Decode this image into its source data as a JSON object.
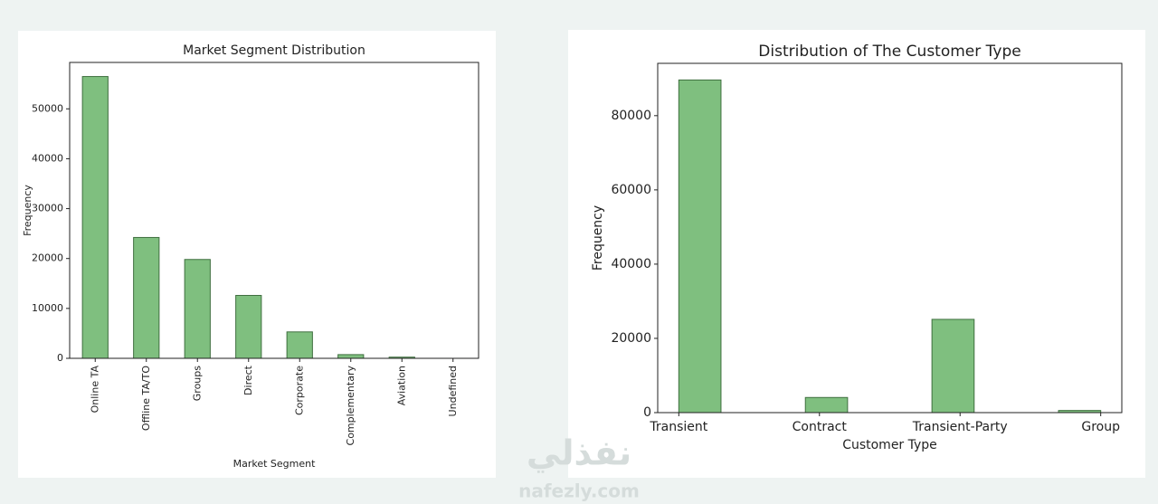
{
  "chart_data": [
    {
      "type": "bar",
      "title": "Market Segment Distribution",
      "xlabel": "Market Segment",
      "ylabel": "Frequency",
      "categories": [
        "Online TA",
        "Offline TA/TO",
        "Groups",
        "Direct",
        "Corporate",
        "Complementary",
        "Aviation",
        "Undefined"
      ],
      "values": [
        56477,
        24219,
        19811,
        12606,
        5295,
        743,
        237,
        2
      ],
      "color": "#7fbf7f",
      "edgecolor": "#3f6f3f",
      "ylim": [
        0,
        59300
      ],
      "yticks": [
        0,
        10000,
        20000,
        30000,
        40000,
        50000
      ]
    },
    {
      "type": "histogram",
      "title": "Distribution of The Customer Type",
      "xlabel": "Customer Type",
      "ylabel": "Frequency",
      "bins": [
        0,
        0.3,
        0.6,
        0.9,
        1.2,
        1.5,
        1.8,
        2.1,
        2.4,
        2.7,
        3
      ],
      "values": [
        89613,
        0,
        0,
        4076,
        0,
        0,
        25124,
        0,
        0,
        577
      ],
      "color": "#7fbf7f",
      "edgecolor": "#3f6f3f",
      "xlim": [
        -0.15,
        3.15
      ],
      "xticks": [
        {
          "value": 0,
          "label": "Transient"
        },
        {
          "value": 1,
          "label": "Contract"
        },
        {
          "value": 2,
          "label": "Transient-Party"
        },
        {
          "value": 3,
          "label": "Group"
        }
      ],
      "ylim": [
        0,
        94094
      ],
      "yticks": [
        0,
        20000,
        40000,
        60000,
        80000
      ]
    }
  ],
  "watermark": {
    "arabic": "نفذلي",
    "latin": "nafezly.com"
  }
}
